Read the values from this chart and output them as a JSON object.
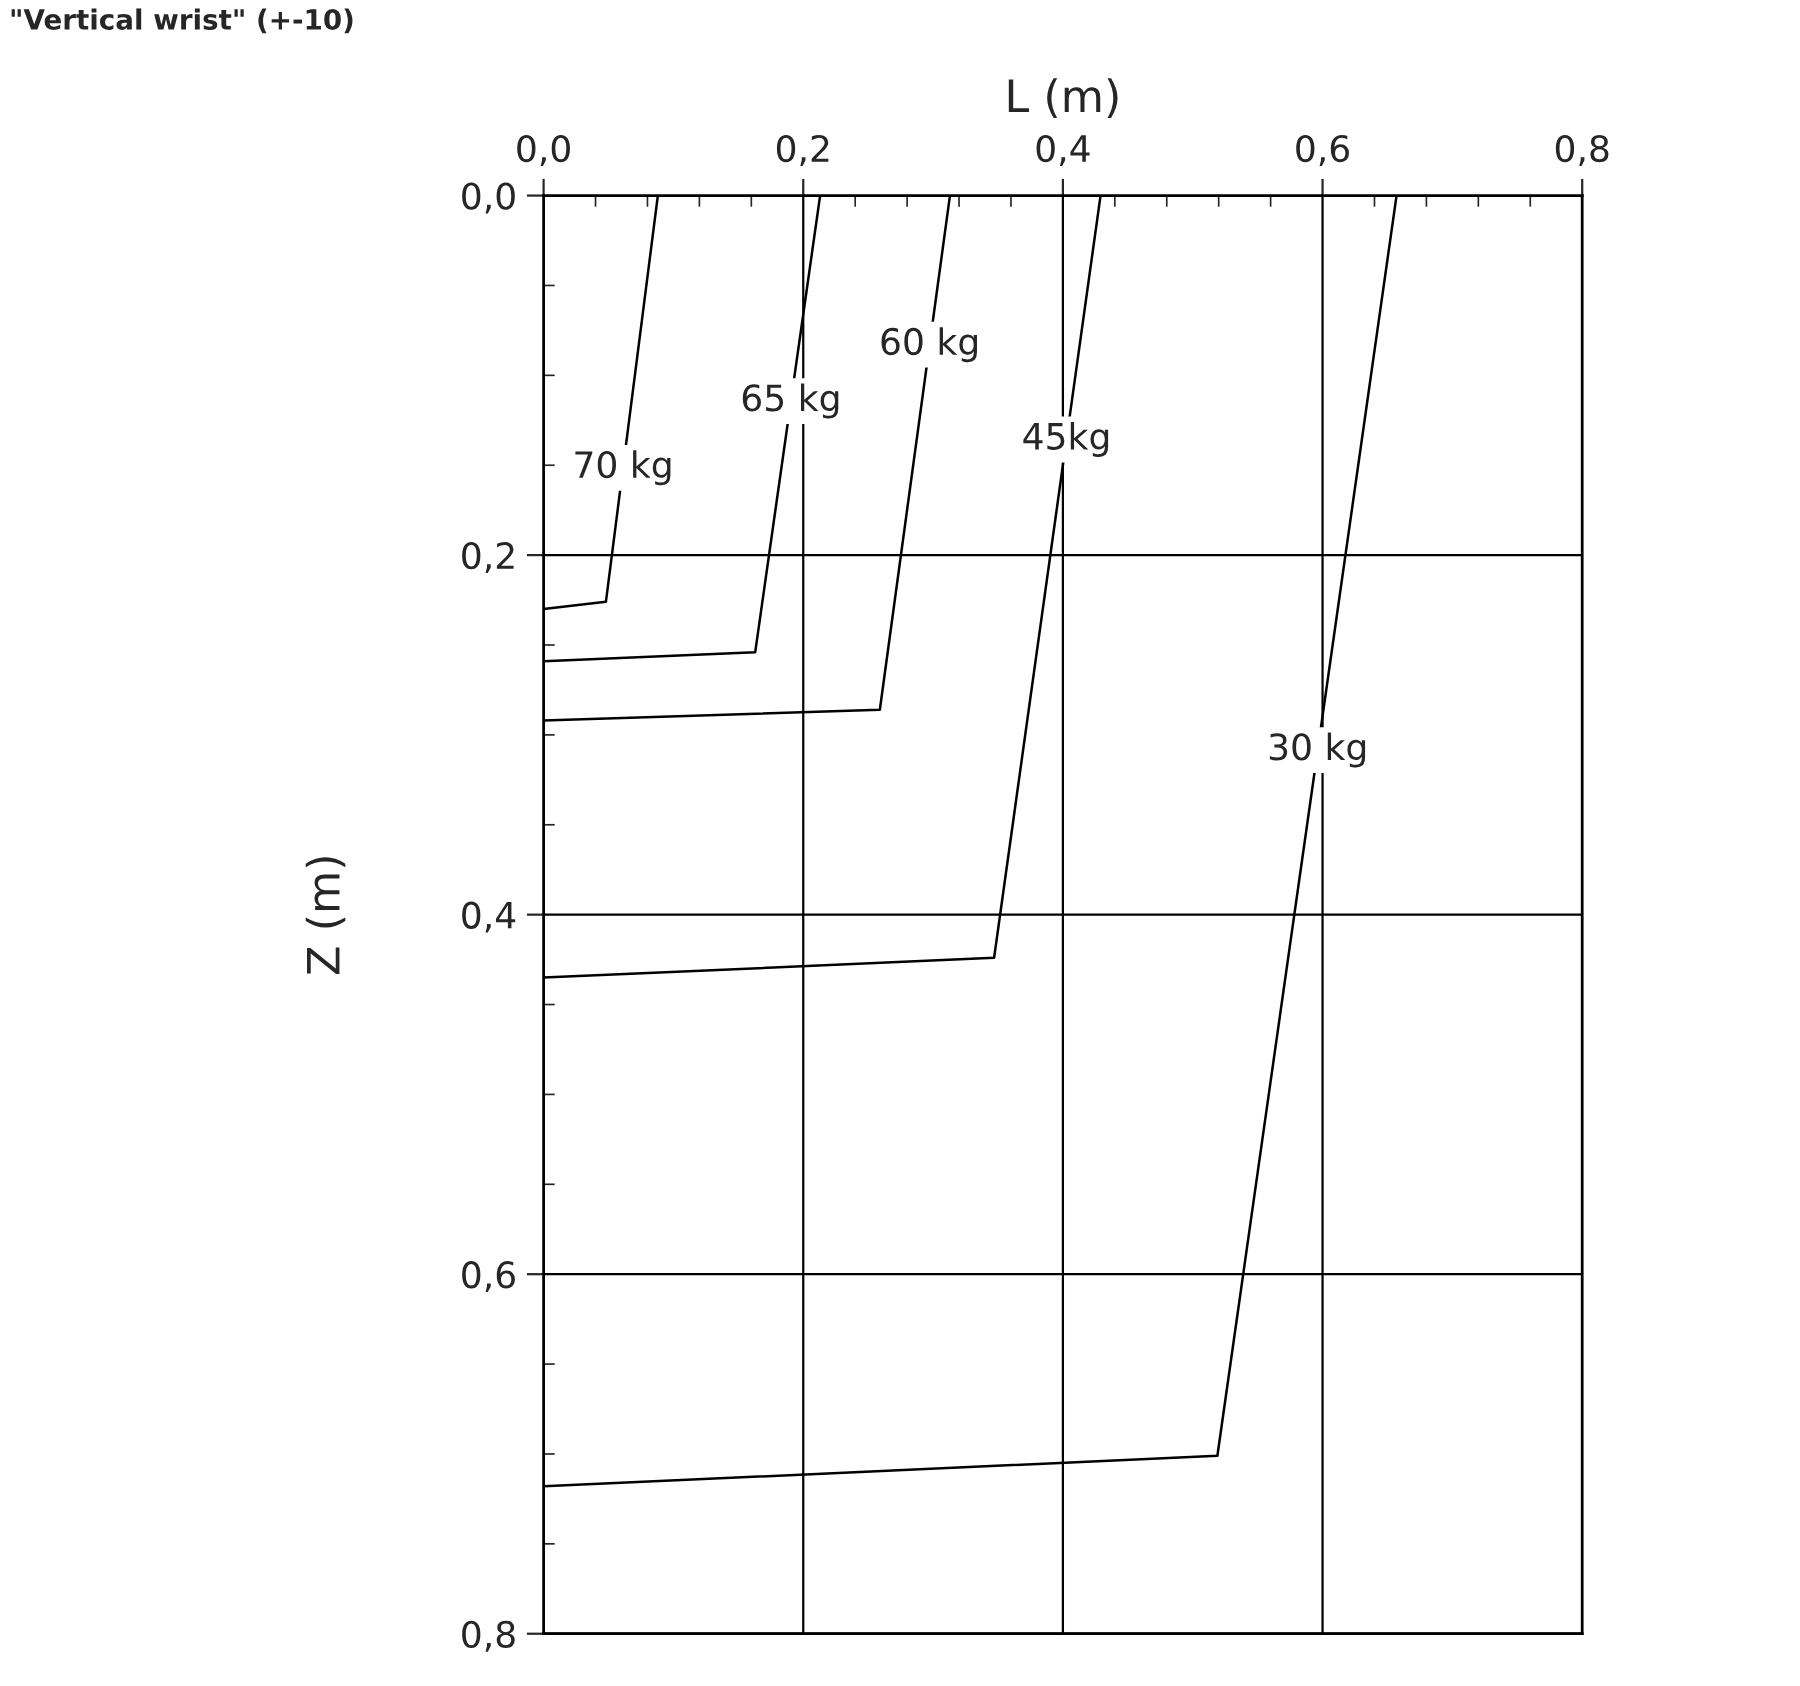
{
  "chart_data": {
    "type": "line",
    "title": "\"Vertical wrist\" (+-10)",
    "xlabel": "L (m)",
    "ylabel": "Z (m)",
    "xlim": [
      0,
      0.8
    ],
    "ylim": [
      0.8,
      0
    ],
    "xticks": [
      {
        "value": 0,
        "label": "0,0"
      },
      {
        "value": 0.2,
        "label": "0,2"
      },
      {
        "value": 0.4,
        "label": "0,4"
      },
      {
        "value": 0.6,
        "label": "0,6"
      },
      {
        "value": 0.8,
        "label": "0,8"
      }
    ],
    "yticks": [
      {
        "value": 0,
        "label": "0,0"
      },
      {
        "value": 0.2,
        "label": "0,2"
      },
      {
        "value": 0.4,
        "label": "0,4"
      },
      {
        "value": 0.6,
        "label": "0,6"
      },
      {
        "value": 0.8,
        "label": "0,8"
      }
    ],
    "grid": true,
    "legend": false,
    "marker": "none",
    "line_style": "solid",
    "series": [
      {
        "name": "70 kg",
        "color": "#000000",
        "x": [
          0,
          0.048,
          0.088
        ],
        "values": [
          0.23,
          0.226,
          0
        ]
      },
      {
        "name": "65 kg",
        "color": "#000000",
        "x": [
          0,
          0.163,
          0.213
        ],
        "values": [
          0.259,
          0.254,
          0
        ]
      },
      {
        "name": "60 kg",
        "color": "#000000",
        "x": [
          0,
          0.259,
          0.313
        ],
        "values": [
          0.292,
          0.286,
          0
        ]
      },
      {
        "name": "45kg",
        "color": "#000000",
        "x": [
          0,
          0.347,
          0.429
        ],
        "values": [
          0.435,
          0.424,
          0
        ]
      },
      {
        "name": "30 kg",
        "color": "#000000",
        "x": [
          0,
          0.519,
          0.657
        ],
        "values": [
          0.718,
          0.701,
          0
        ]
      }
    ]
  }
}
